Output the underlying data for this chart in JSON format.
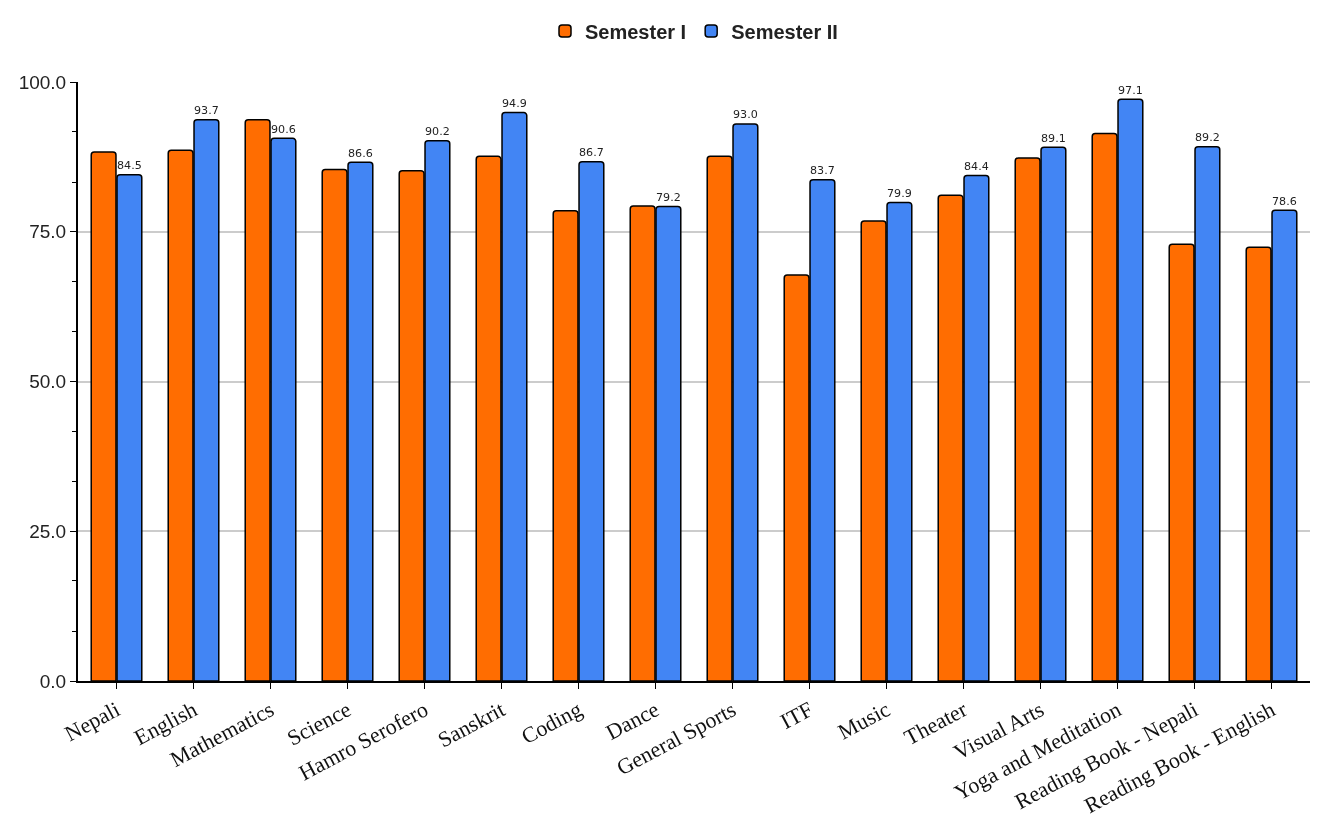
{
  "chart_data": {
    "type": "bar",
    "categories": [
      "Nepali",
      "English",
      "Mathematics",
      "Science",
      "Hamro Serofero",
      "Sanskrit",
      "Coding",
      "Dance",
      "General Sports",
      "ITF",
      "Music",
      "Theater",
      "Visual Arts",
      "Yoga and Meditation",
      "Reading Book - Nepali",
      "Reading Book - English"
    ],
    "series": [
      {
        "name": "Semester I",
        "color": "#ff6d01",
        "values": [
          88.3,
          88.6,
          93.7,
          85.4,
          85.2,
          87.6,
          78.5,
          79.3,
          87.6,
          67.8,
          76.8,
          81.1,
          87.3,
          91.4,
          72.9,
          72.4
        ]
      },
      {
        "name": "Semester II",
        "color": "#4285f4",
        "values": [
          84.5,
          93.7,
          90.6,
          86.6,
          90.2,
          94.9,
          86.7,
          79.2,
          93.0,
          83.7,
          79.9,
          84.4,
          89.1,
          97.1,
          89.2,
          78.6
        ],
        "value_labels": [
          "84.5",
          "93.7",
          "90.6",
          "86.6",
          "90.2",
          "94.9",
          "86.7",
          "79.2",
          "93.0",
          "83.7",
          "79.9",
          "84.4",
          "89.1",
          "97.1",
          "89.2",
          "78.6"
        ]
      }
    ],
    "ylim": [
      0,
      100
    ],
    "yticks": [
      {
        "value": 0,
        "label": "0.0"
      },
      {
        "value": 8.3,
        "label": null
      },
      {
        "value": 16.7,
        "label": null
      },
      {
        "value": 25,
        "label": "25.0"
      },
      {
        "value": 33.3,
        "label": null
      },
      {
        "value": 41.7,
        "label": null
      },
      {
        "value": 50,
        "label": "50.0"
      },
      {
        "value": 58.3,
        "label": null
      },
      {
        "value": 66.7,
        "label": null
      },
      {
        "value": 75,
        "label": "75.0"
      },
      {
        "value": 83.3,
        "label": null
      },
      {
        "value": 91.7,
        "label": null
      },
      {
        "value": 100,
        "label": "100.0"
      }
    ],
    "grid": "y",
    "legend": "top"
  }
}
